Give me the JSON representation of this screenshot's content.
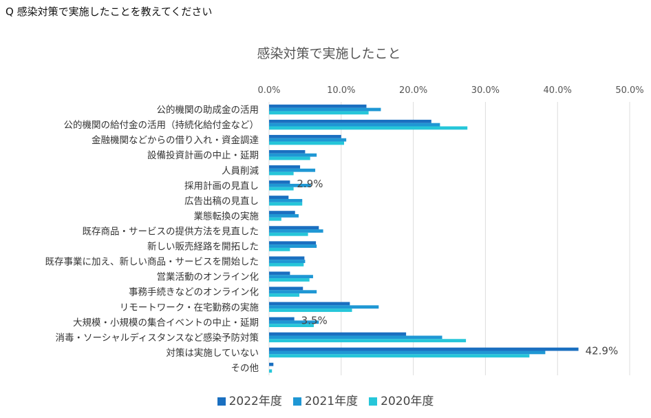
{
  "question": "Q 感染対策で実施したことを教えてください",
  "chart_data": {
    "type": "bar",
    "orientation": "horizontal",
    "title": "感染対策で実施したこと",
    "xlim": [
      0,
      50
    ],
    "x_ticks": [
      "0.0%",
      "10.0%",
      "20.0%",
      "30.0%",
      "40.0%",
      "50.0%"
    ],
    "grid": true,
    "legend_position": "bottom",
    "categories": [
      "公的機関の助成金の活用",
      "公的機関の給付金の活用（持続化給付金など）",
      "金融機関などからの借り入れ・資金調達",
      "設備投資計画の中止・延期",
      "人員削減",
      "採用計画の見直し",
      "広告出稿の見直し",
      "業態転換の実施",
      "既存商品・サービスの提供方法を見直した",
      "新しい販売経路を開拓した",
      "既存事業に加え、新しい商品・サービスを開始した",
      "営業活動のオンライン化",
      "事務手続きなどのオンライン化",
      "リモートワーク・在宅勤務の実施",
      "大規模・小規模の集合イベントの中止・延期",
      "消毒・ソーシャルディスタンスなど感染予防対策",
      "対策は実施していない",
      "その他"
    ],
    "series": [
      {
        "name": "2022年度",
        "color": "#1a6fc0",
        "values": [
          13.5,
          22.5,
          10.0,
          5.0,
          4.3,
          2.9,
          2.7,
          3.6,
          6.9,
          6.5,
          4.9,
          2.9,
          4.7,
          11.2,
          3.5,
          19.0,
          42.9,
          0.6
        ]
      },
      {
        "name": "2021年度",
        "color": "#1f97d4",
        "values": [
          15.5,
          23.7,
          10.7,
          6.6,
          6.4,
          5.8,
          4.6,
          4.1,
          7.5,
          6.6,
          5.0,
          6.1,
          6.6,
          15.2,
          6.9,
          24.0,
          38.3,
          0.0
        ]
      },
      {
        "name": "2020年度",
        "color": "#26c6d9",
        "values": [
          13.8,
          27.5,
          10.4,
          5.7,
          3.4,
          3.4,
          4.6,
          1.7,
          5.4,
          2.9,
          4.8,
          5.6,
          4.2,
          11.5,
          6.2,
          27.3,
          36.1,
          0.4
        ]
      }
    ],
    "data_labels": [
      {
        "text": "2.9%",
        "category_index": 5
      },
      {
        "text": "3.5%",
        "category_index": 14
      },
      {
        "text": "42.9%",
        "category_index": 16
      }
    ]
  }
}
